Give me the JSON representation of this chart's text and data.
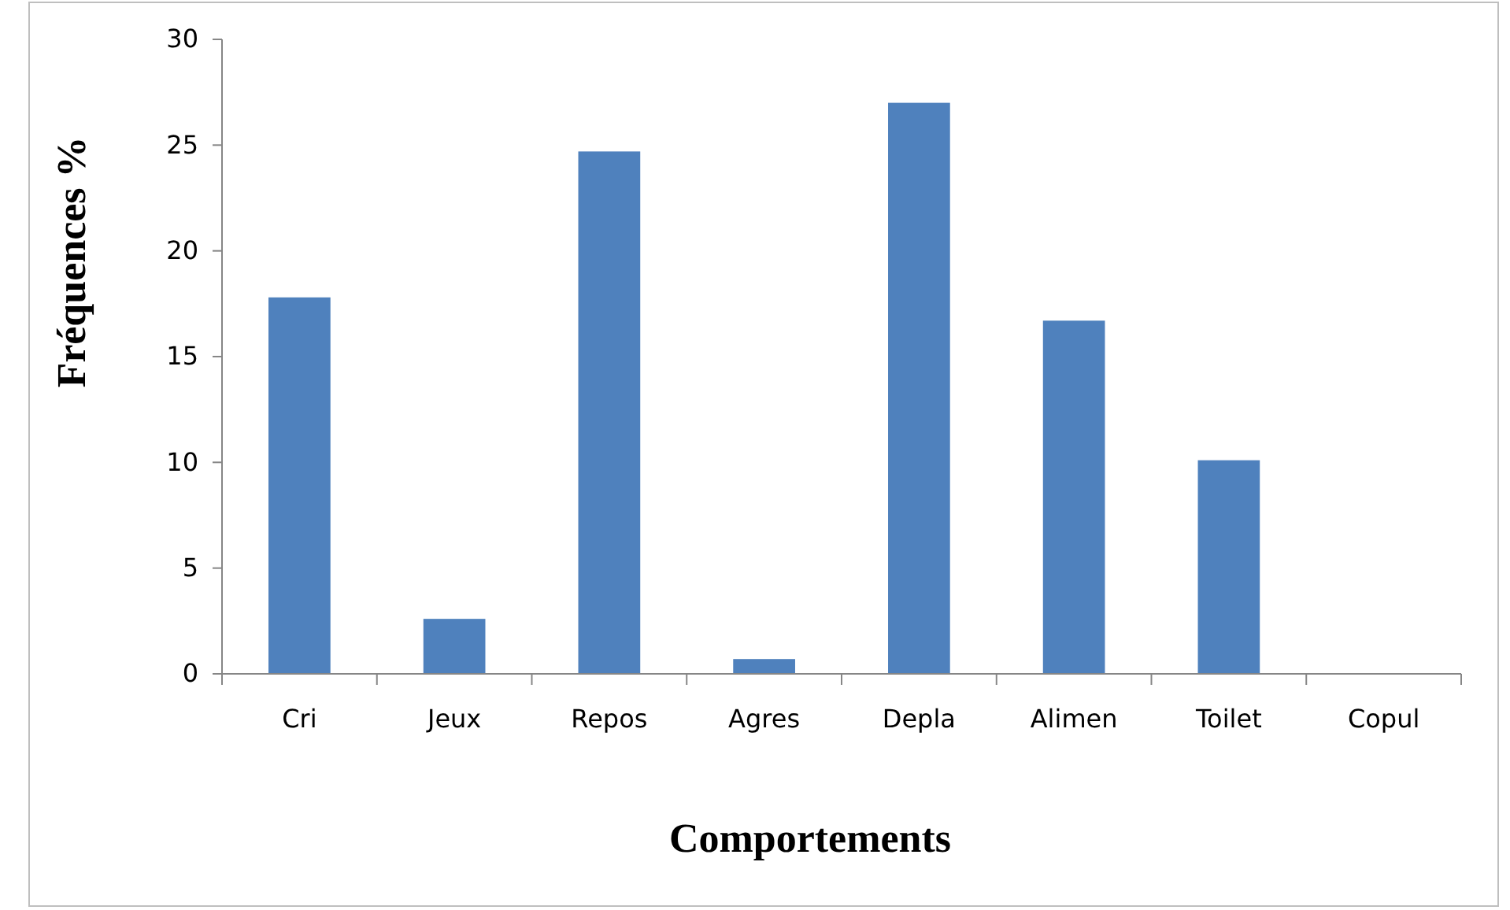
{
  "chart_data": {
    "type": "bar",
    "xlabel": "Comportements",
    "ylabel": "Fréquences  %",
    "categories": [
      "Cri",
      "Jeux",
      "Repos",
      "Agres",
      "Depla",
      "Alimen",
      "Toilet",
      "Copul"
    ],
    "values": [
      17.8,
      2.6,
      24.7,
      0.7,
      27,
      16.7,
      10.1,
      0
    ],
    "color": "#4f81bd",
    "ylim": [
      0,
      30
    ],
    "yticks": [
      0,
      5,
      10,
      15,
      20,
      25,
      30
    ],
    "grid": false
  }
}
